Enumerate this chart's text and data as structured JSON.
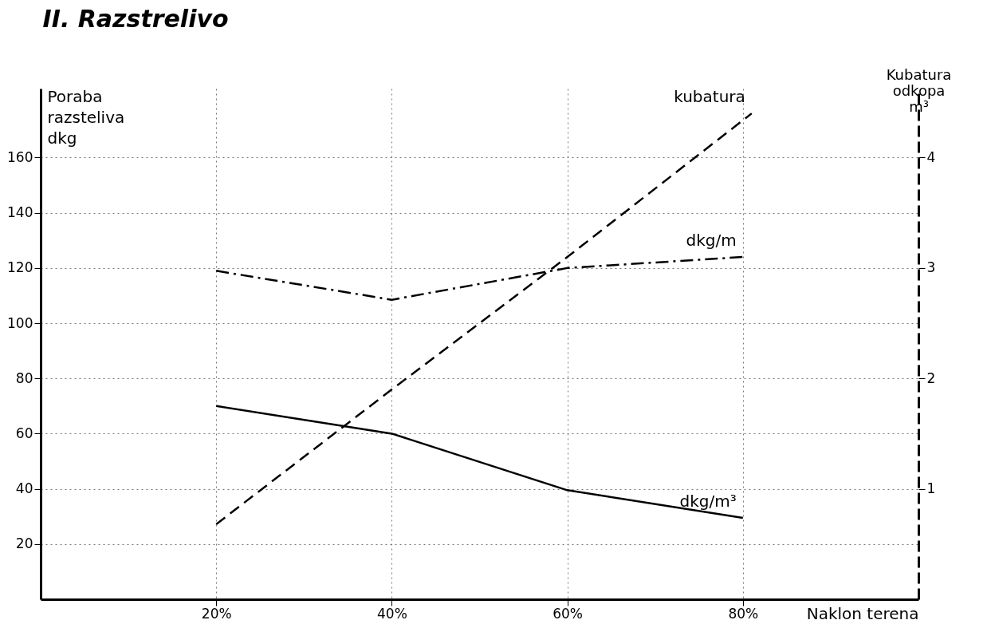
{
  "chart_data": {
    "type": "line",
    "title": "II. Razstrelivo",
    "xlabel": "Naklon terena",
    "ylabel": "Poraba razsteliva dkg",
    "y2label": "Kubatura odkopa m³",
    "x": [
      20,
      40,
      60,
      80
    ],
    "series": [
      {
        "name": "dkg/m³",
        "color": "#000000",
        "line_style": "solid",
        "values": [
          70,
          60,
          39.5,
          29.5
        ]
      },
      {
        "name": "dkg/m",
        "color": "#000000",
        "line_style": "dashdot",
        "values": [
          119,
          108.5,
          120,
          124
        ]
      },
      {
        "name": "kubatura",
        "color": "#000000",
        "line_style": "dashed",
        "axis": "y2",
        "x": [
          20,
          40,
          60,
          81
        ],
        "values": [
          0.68,
          1.9,
          3.1,
          4.4
        ]
      }
    ],
    "xlim": [
      0,
      100
    ],
    "xticks": [
      {
        "value": 20,
        "label": "20%"
      },
      {
        "value": 40,
        "label": "40%"
      },
      {
        "value": 60,
        "label": "60%"
      },
      {
        "value": 80,
        "label": "80%"
      }
    ],
    "ylim": [
      0,
      185
    ],
    "yticks": [
      20,
      40,
      60,
      80,
      100,
      120,
      140,
      160
    ],
    "y2lim": [
      0,
      4.625
    ],
    "y2ticks": [
      1,
      2,
      3,
      4
    ],
    "grid": true,
    "marker": "none"
  }
}
